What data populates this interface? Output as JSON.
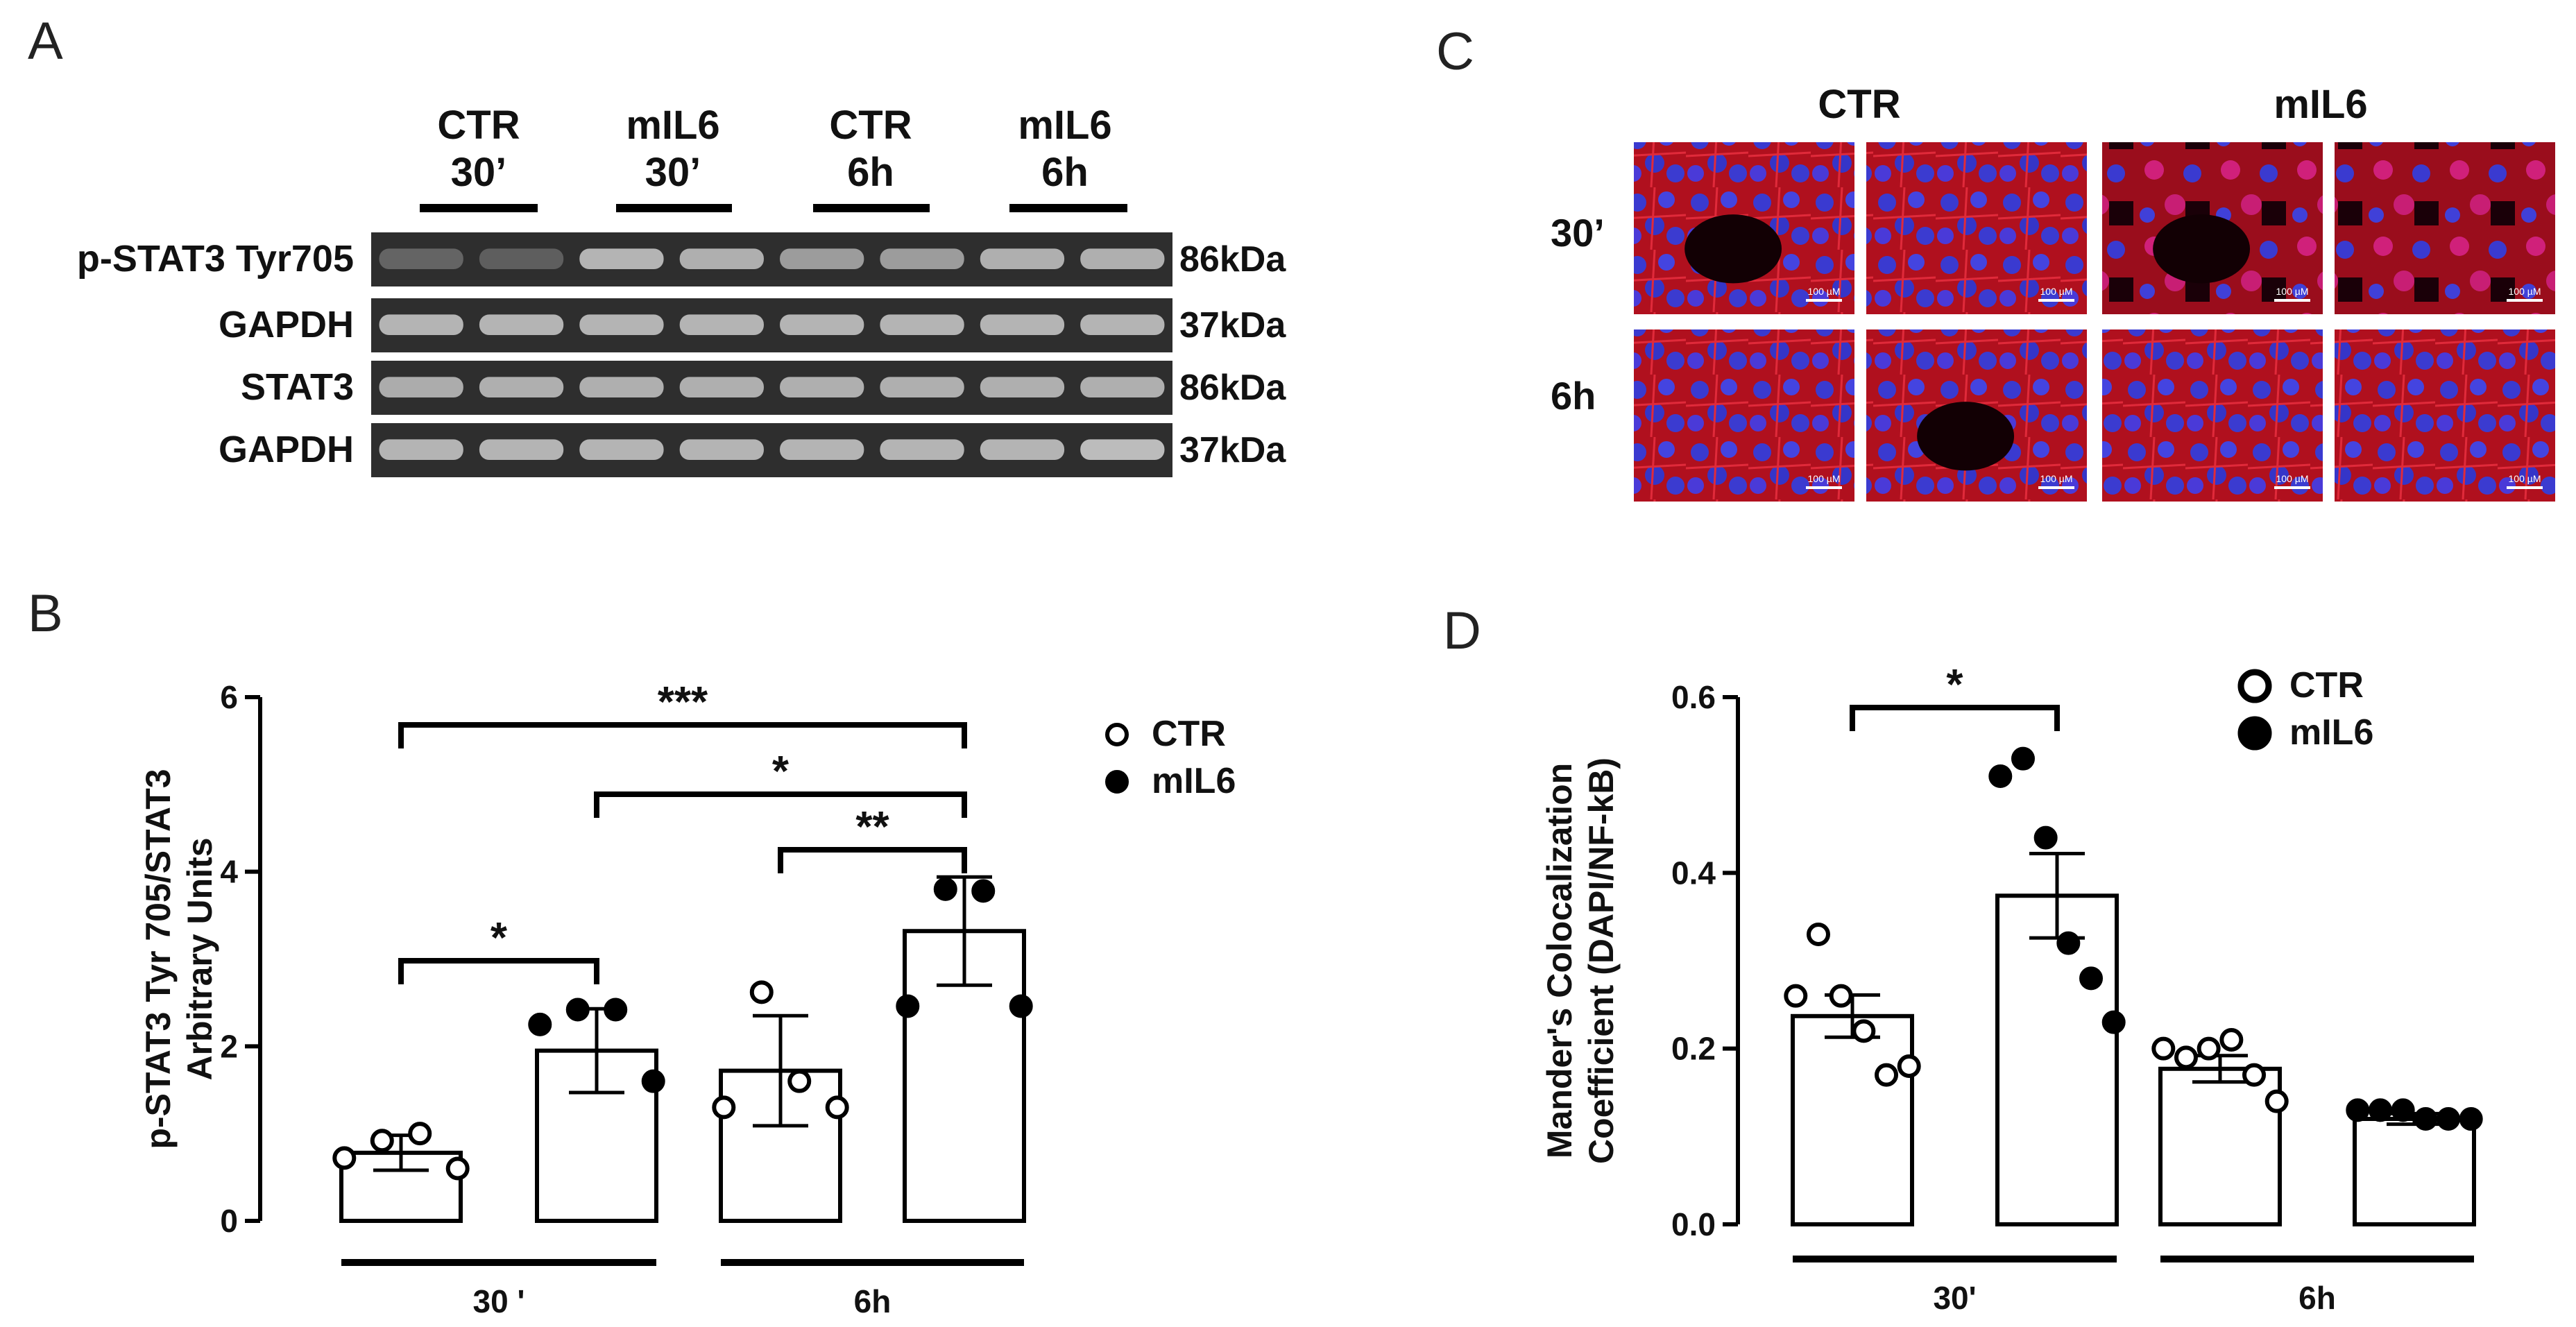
{
  "panels": {
    "A": "A",
    "B": "B",
    "C": "C",
    "D": "D"
  },
  "blot": {
    "groups": [
      {
        "line1": "CTR",
        "line2": "30’"
      },
      {
        "line1": "mIL6",
        "line2": "30’"
      },
      {
        "line1": "CTR",
        "line2": "6h"
      },
      {
        "line1": "mIL6",
        "line2": "6h"
      }
    ],
    "rows": [
      {
        "name": "p-STAT3 Tyr705",
        "kda": "86kDa",
        "intensity": [
          0.25,
          0.22,
          0.75,
          0.72,
          0.6,
          0.6,
          0.72,
          0.72
        ]
      },
      {
        "name": "GAPDH",
        "kda": "37kDa",
        "intensity": [
          0.75,
          0.75,
          0.75,
          0.75,
          0.75,
          0.75,
          0.75,
          0.75
        ]
      },
      {
        "name": "STAT3",
        "kda": "86kDa",
        "intensity": [
          0.7,
          0.72,
          0.72,
          0.72,
          0.72,
          0.72,
          0.72,
          0.72
        ]
      },
      {
        "name": "GAPDH",
        "kda": "37kDa",
        "intensity": [
          0.75,
          0.75,
          0.75,
          0.75,
          0.75,
          0.75,
          0.75,
          0.8
        ]
      }
    ]
  },
  "micro": {
    "col_labels": [
      "CTR",
      "mIL6"
    ],
    "row_labels": [
      "30’",
      "6h"
    ],
    "scale_bar": "100 µM"
  },
  "legend_entries": [
    {
      "label": "CTR",
      "fill": "open"
    },
    {
      "label": "mIL6",
      "fill": "filled"
    }
  ],
  "chart_data": [
    {
      "type": "bar",
      "panel": "B",
      "ylabel_line1": "p-STAT3 Tyr 705/STAT3",
      "ylabel_line2": "Arbitrary Units",
      "ylim": [
        0,
        6
      ],
      "yticks": [
        "0",
        "2",
        "4",
        "6"
      ],
      "groups": [
        "30 '",
        "6h"
      ],
      "bars": [
        {
          "series": "CTR",
          "group": "30 '",
          "mean": 0.78,
          "err": 0.2,
          "points": [
            0.72,
            0.92,
            1.0,
            0.6
          ]
        },
        {
          "series": "mIL6",
          "group": "30 '",
          "mean": 1.95,
          "err": 0.48,
          "points": [
            2.25,
            2.42,
            2.42,
            1.6
          ]
        },
        {
          "series": "CTR",
          "group": "6h",
          "mean": 1.72,
          "err": 0.63,
          "points": [
            1.3,
            2.62,
            1.6,
            1.3
          ]
        },
        {
          "series": "mIL6",
          "group": "6h",
          "mean": 3.32,
          "err": 0.62,
          "points": [
            2.46,
            3.8,
            3.78,
            2.46
          ]
        }
      ],
      "significance": [
        {
          "from": 0,
          "to": 1,
          "label": "*"
        },
        {
          "from": 2,
          "to": 3,
          "label": "**"
        },
        {
          "from": 1,
          "to": 3,
          "label": "*"
        },
        {
          "from": 0,
          "to": 3,
          "label": "***"
        }
      ],
      "legend": [
        "CTR",
        "mIL6"
      ]
    },
    {
      "type": "bar",
      "panel": "D",
      "ylabel_line1": "Mander's Colocalization",
      "ylabel_line2": "Coefficient (DAPI/NF-kB)",
      "ylim": [
        0,
        0.6
      ],
      "yticks": [
        "0.0",
        "0.2",
        "0.4",
        "0.6"
      ],
      "groups": [
        "30'",
        "6h"
      ],
      "bars": [
        {
          "series": "CTR",
          "group": "30'",
          "mean": 0.237,
          "err": 0.024,
          "points": [
            0.26,
            0.33,
            0.26,
            0.22,
            0.17,
            0.18
          ]
        },
        {
          "series": "mIL6",
          "group": "30'",
          "mean": 0.374,
          "err": 0.048,
          "points": [
            0.51,
            0.53,
            0.44,
            0.32,
            0.28,
            0.23
          ]
        },
        {
          "series": "CTR",
          "group": "6h",
          "mean": 0.177,
          "err": 0.015,
          "points": [
            0.2,
            0.19,
            0.2,
            0.21,
            0.17,
            0.14
          ]
        },
        {
          "series": "mIL6",
          "group": "6h",
          "mean": 0.12,
          "err": 0.006,
          "points": [
            0.13,
            0.13,
            0.13,
            0.12,
            0.12,
            0.12
          ]
        }
      ],
      "significance": [
        {
          "from": 0,
          "to": 1,
          "label": "*"
        }
      ],
      "legend": [
        "CTR",
        "mIL6"
      ]
    }
  ]
}
